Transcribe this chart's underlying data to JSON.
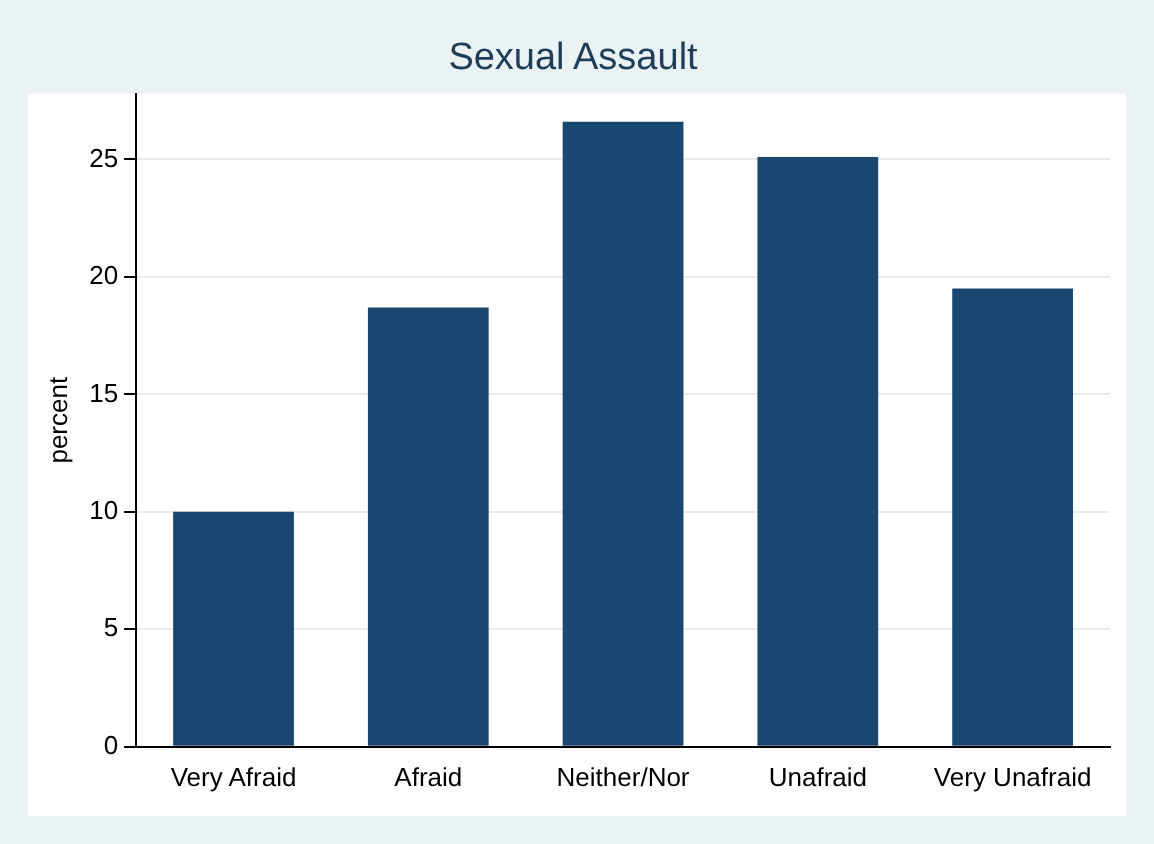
{
  "chart_data": {
    "type": "bar",
    "title": "Sexual Assault",
    "ylabel": "percent",
    "categories": [
      "Very Afraid",
      "Afraid",
      "Neither/Nor",
      "Unafraid",
      "Very Unafraid"
    ],
    "values": [
      10.0,
      18.7,
      26.6,
      25.1,
      19.5
    ],
    "color": "#1a476f",
    "ylim": [
      0,
      27.8
    ],
    "yticks": [
      0,
      5,
      10,
      15,
      20,
      25
    ],
    "grid": "y",
    "legend": false
  }
}
